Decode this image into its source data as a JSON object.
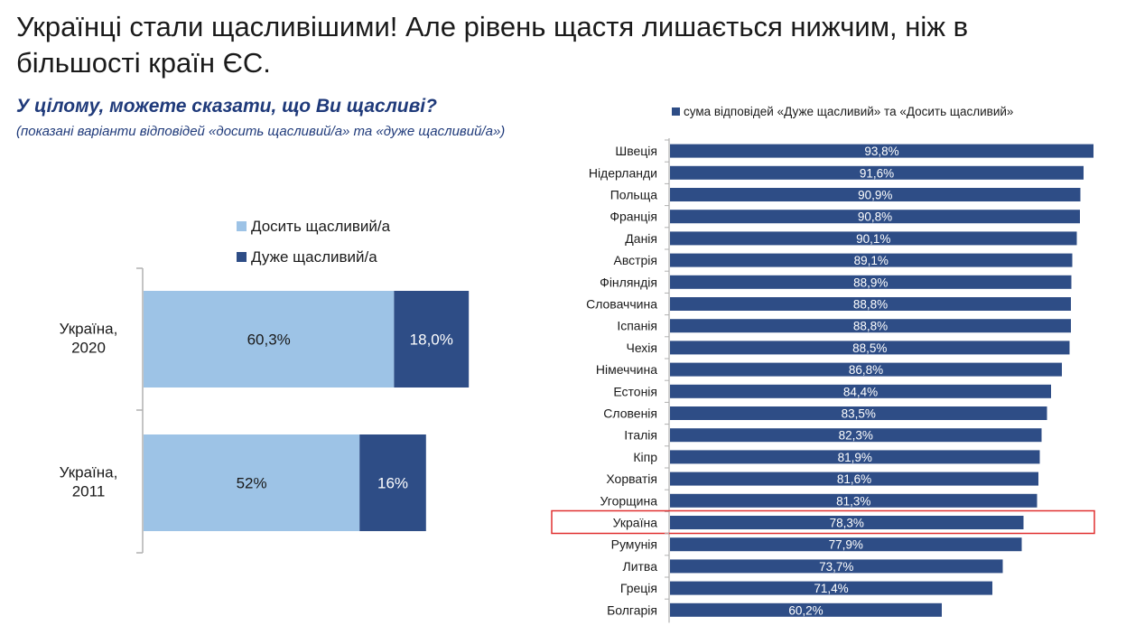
{
  "header": {
    "title_line1": "Українці стали щасливішими! Але рівень щастя лишається нижчим, ніж в",
    "title_line2": "більшості країн ЄС.",
    "question": "У цілому, можете сказати, що Ви щасливі?",
    "note": "(показані варіанти відповідей «досить щасливий/а» та «дуже щасливий/а»)"
  },
  "colors": {
    "light_blue": "#9dc3e6",
    "dark_blue": "#2e4d86",
    "highlight_border": "#e03030",
    "axis": "#b0b0b0"
  },
  "chart_data": [
    {
      "type": "bar",
      "orientation": "horizontal",
      "stacked": true,
      "legend_position": "top",
      "categories": [
        [
          "Україна,",
          "2020"
        ],
        [
          "Україна,",
          "2011"
        ]
      ],
      "series": [
        {
          "name": "Досить щасливий/а",
          "color": "#9dc3e6",
          "values": [
            60.3,
            52
          ],
          "labels": [
            "60,3%",
            "52%"
          ]
        },
        {
          "name": "Дуже щасливий/а",
          "color": "#2e4d86",
          "values": [
            18.0,
            16
          ],
          "labels": [
            "18,0%",
            "16%"
          ]
        }
      ],
      "xlim": [
        0,
        100
      ]
    },
    {
      "type": "bar",
      "orientation": "horizontal",
      "legend_position": "top",
      "series": [
        {
          "name": "сума відповідей «Дуже щасливий» та «Досить щасливий»",
          "color": "#2e4d86"
        }
      ],
      "categories": [
        "Швеція",
        "Нідерланди",
        "Польща",
        "Франція",
        "Данія",
        "Австрія",
        "Фінляндія",
        "Словаччина",
        "Іспанія",
        "Чехія",
        "Німеччина",
        "Естонія",
        "Словенія",
        "Італія",
        "Кіпр",
        "Хорватія",
        "Угорщина",
        "Україна",
        "Румунія",
        "Литва",
        "Греція",
        "Болгарія"
      ],
      "values": [
        93.8,
        91.6,
        90.9,
        90.8,
        90.1,
        89.1,
        88.9,
        88.8,
        88.8,
        88.5,
        86.8,
        84.4,
        83.5,
        82.3,
        81.9,
        81.6,
        81.3,
        78.3,
        77.9,
        73.7,
        71.4,
        60.2
      ],
      "labels": [
        "93,8%",
        "91,6%",
        "90,9%",
        "90,8%",
        "90,1%",
        "89,1%",
        "88,9%",
        "88,8%",
        "88,8%",
        "88,5%",
        "86,8%",
        "84,4%",
        "83,5%",
        "82,3%",
        "81,9%",
        "81,6%",
        "81,3%",
        "78,3%",
        "77,9%",
        "73,7%",
        "71,4%",
        "60,2%"
      ],
      "highlight": "Україна",
      "xlim": [
        0,
        100
      ]
    }
  ]
}
